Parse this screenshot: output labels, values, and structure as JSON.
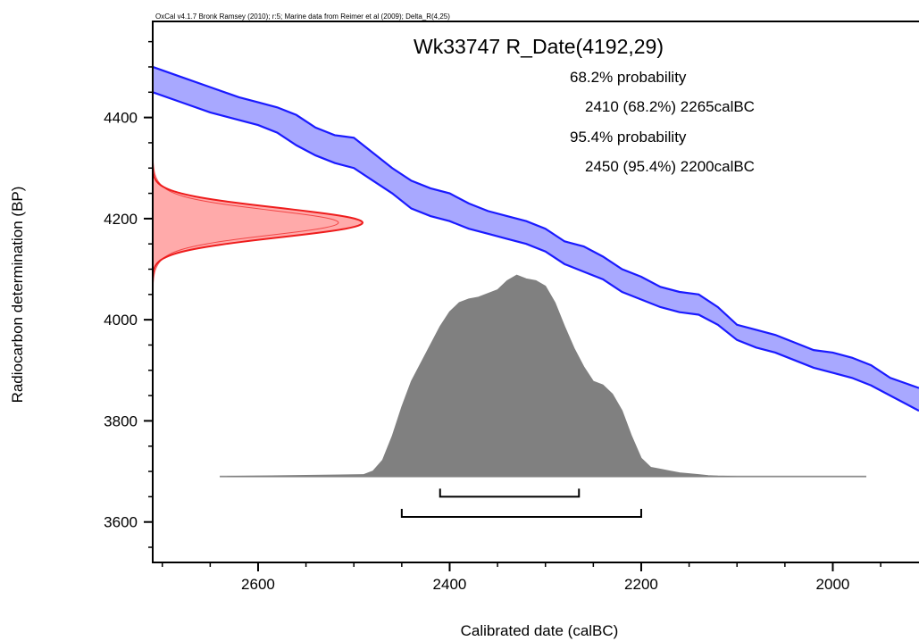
{
  "chart_data": {
    "type": "area",
    "credit": "OxCal v4.1.7 Bronk Ramsey (2010); r:5; Marine data from Reimer et al (2009); Delta_R(4,25)",
    "title": "Wk33747 R_Date(4192,29)",
    "xlabel": "Calibrated date (calBC)",
    "ylabel": "Radiocarbon determination (BP)",
    "xlim": [
      2710,
      1910
    ],
    "ylim": [
      3520,
      4590
    ],
    "x_ticks": [
      2600,
      2400,
      2200,
      2000
    ],
    "y_ticks": [
      3600,
      3800,
      4000,
      4200,
      4400
    ],
    "x_tick_labels": [
      "2600",
      "2400",
      "2200",
      "2000"
    ],
    "y_tick_labels": [
      "3600",
      "3800",
      "4000",
      "4200",
      "4400"
    ],
    "grid": false,
    "legend": "none",
    "probability_text": [
      "68.2% probability",
      "2410 (68.2%) 2265calBC",
      "95.4% probability",
      "2450 (95.4%) 2200calBC"
    ],
    "ranges": [
      {
        "level": "68.2%",
        "from": 2410,
        "to": 2265
      },
      {
        "level": "95.4%",
        "from": 2450,
        "to": 2200
      }
    ],
    "measurement": {
      "mean": 4192,
      "error": 29
    },
    "calibration_curve": {
      "color": "#1a1aff",
      "fill": "#a8a8ff",
      "x": [
        2710,
        2680,
        2650,
        2620,
        2600,
        2580,
        2560,
        2540,
        2520,
        2500,
        2480,
        2460,
        2440,
        2420,
        2400,
        2380,
        2360,
        2340,
        2320,
        2300,
        2280,
        2260,
        2240,
        2220,
        2200,
        2180,
        2160,
        2140,
        2120,
        2100,
        2080,
        2060,
        2040,
        2020,
        2000,
        1980,
        1960,
        1940,
        1910
      ],
      "upper": [
        4500,
        4480,
        4460,
        4440,
        4430,
        4420,
        4405,
        4380,
        4365,
        4360,
        4330,
        4300,
        4275,
        4260,
        4250,
        4230,
        4215,
        4205,
        4195,
        4180,
        4155,
        4145,
        4125,
        4100,
        4085,
        4065,
        4055,
        4050,
        4025,
        3990,
        3980,
        3970,
        3955,
        3940,
        3935,
        3925,
        3910,
        3885,
        3865
      ],
      "lower": [
        4450,
        4430,
        4410,
        4395,
        4385,
        4370,
        4345,
        4325,
        4310,
        4300,
        4275,
        4250,
        4220,
        4205,
        4195,
        4180,
        4170,
        4160,
        4150,
        4135,
        4110,
        4095,
        4080,
        4055,
        4040,
        4025,
        4015,
        4010,
        3990,
        3960,
        3945,
        3935,
        3920,
        3905,
        3895,
        3885,
        3870,
        3850,
        3820
      ]
    },
    "radiocarbon_distribution": {
      "color": "#ee1c1c",
      "fill": "#ffaaaa",
      "mean": 4192,
      "sigma": 29,
      "y_range": [
        4060,
        4320
      ]
    },
    "calibrated_distribution": {
      "color": "#808080",
      "baseline_color": "#b0b0b0",
      "x_range": [
        2640,
        1965
      ],
      "x": [
        2640,
        2490,
        2480,
        2470,
        2460,
        2450,
        2440,
        2430,
        2420,
        2410,
        2400,
        2390,
        2380,
        2370,
        2360,
        2350,
        2340,
        2330,
        2320,
        2310,
        2300,
        2290,
        2280,
        2270,
        2260,
        2250,
        2240,
        2230,
        2220,
        2210,
        2200,
        2190,
        2180,
        2170,
        2160,
        2150,
        2140,
        2130,
        2120,
        2100,
        1965
      ],
      "density": [
        0,
        0.01,
        0.03,
        0.09,
        0.22,
        0.38,
        0.52,
        0.62,
        0.72,
        0.82,
        0.9,
        0.95,
        0.97,
        0.98,
        1.0,
        1.02,
        1.07,
        1.1,
        1.08,
        1.07,
        1.04,
        0.95,
        0.82,
        0.7,
        0.6,
        0.52,
        0.5,
        0.45,
        0.36,
        0.22,
        0.1,
        0.05,
        0.04,
        0.03,
        0.02,
        0.015,
        0.01,
        0.005,
        0.002,
        0,
        0
      ]
    }
  }
}
